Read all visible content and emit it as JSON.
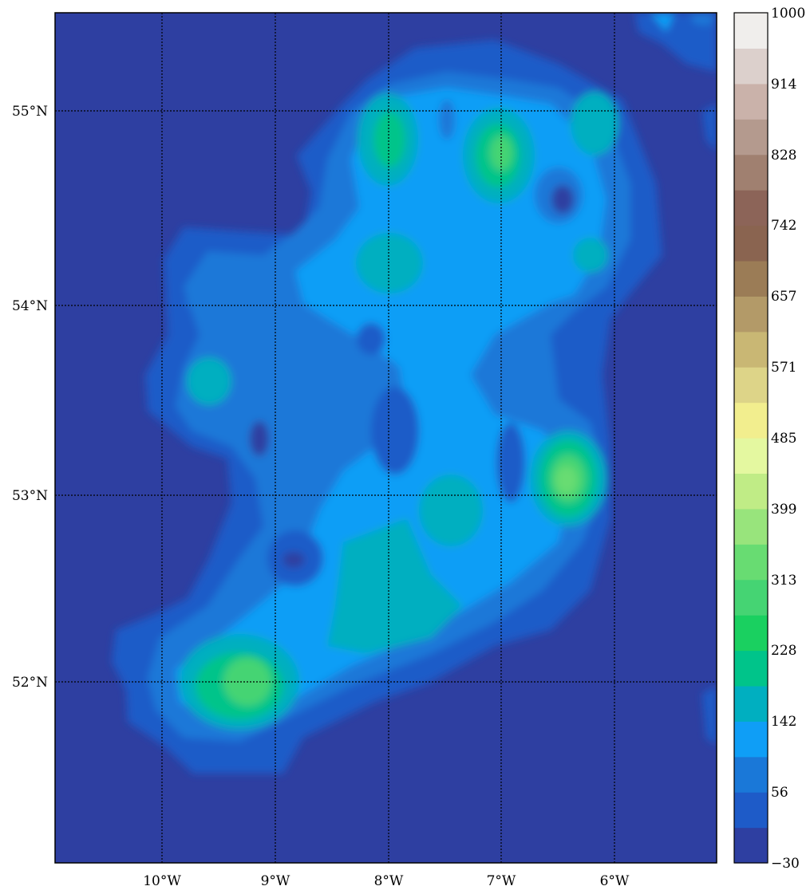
{
  "map": {
    "lon_ticks": [
      "10°W",
      "9°W",
      "8°W",
      "7°W",
      "6°W"
    ],
    "lat_ticks": [
      "55°N",
      "54°N",
      "53°N",
      "52°N"
    ],
    "colors": {
      "ocean": "#2e3fa1",
      "grid": "#000000"
    }
  },
  "colorbar": {
    "tick_labels": [
      "1000",
      "914",
      "828",
      "742",
      "657",
      "571",
      "485",
      "399",
      "313",
      "228",
      "142",
      "56",
      "−30"
    ],
    "colors": [
      "#2e3fa1",
      "#1e5bc8",
      "#1a78d8",
      "#0f9ef6",
      "#00afc0",
      "#00c48a",
      "#1ad060",
      "#45d473",
      "#68dc72",
      "#98e47c",
      "#c0ec86",
      "#e4f8a0",
      "#f2ee8e",
      "#ddd488",
      "#c9b774",
      "#b39a68",
      "#9b7c56",
      "#8a6450",
      "#8c6458",
      "#a08070",
      "#b49a8e",
      "#cab2aa",
      "#dcd0cc",
      "#f0eeec"
    ]
  }
}
